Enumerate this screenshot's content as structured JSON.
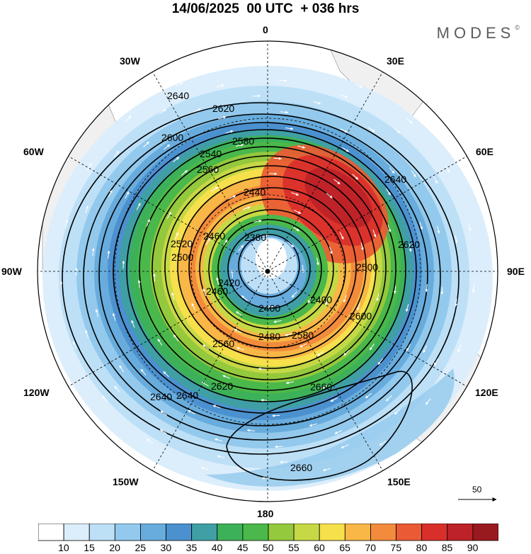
{
  "header": {
    "title": "14/06/2025  00 UTC  + 036 hrs",
    "brand": "MODES",
    "brand_mark": "©"
  },
  "map": {
    "projection": "polar stereographic, south pole centred",
    "longitude_labels": {
      "n": "0",
      "n_e": "30E",
      "e_n": "60E",
      "e": "90E",
      "e_s": "120E",
      "s_e": "150E",
      "s": "180",
      "s_w": "150W",
      "w_s": "120W",
      "w": "90W",
      "w_n": "60W",
      "n_w": "30W"
    },
    "wind_speed_units_shading": "filled",
    "contour_labels": [
      "2640",
      "2620",
      "2600",
      "2580",
      "2560",
      "2540",
      "2440",
      "2380",
      "2500",
      "2520",
      "2460",
      "2420",
      "2400",
      "2480",
      "2660"
    ],
    "vector_reference": "50",
    "colors": {
      "speed_0": "#ffffff",
      "speed_10": "#dceefb",
      "speed_15": "#bde0f7",
      "speed_20": "#93c9ec",
      "speed_25": "#68acdd",
      "speed_30": "#4c91cf",
      "speed_35": "#3f9fa5",
      "speed_40": "#3db159",
      "speed_45": "#4ab84a",
      "speed_50": "#94c83d",
      "speed_55": "#c6d845",
      "speed_60": "#f6e04c",
      "speed_65": "#f8b746",
      "speed_70": "#f28b3b",
      "speed_75": "#ea5a34",
      "speed_80": "#d92f2b",
      "speed_85": "#bd2228",
      "speed_90": "#981a1f",
      "land": "#f0f0f0",
      "contour": "#000000",
      "vector": "#ffffff"
    }
  },
  "colorbar": {
    "ticks": [
      "10",
      "15",
      "20",
      "25",
      "30",
      "35",
      "40",
      "45",
      "50",
      "55",
      "60",
      "65",
      "70",
      "75",
      "80",
      "85",
      "90"
    ],
    "colors": [
      "#ffffff",
      "#dceefb",
      "#bde0f7",
      "#93c9ec",
      "#68acdd",
      "#4c91cf",
      "#3f9fa5",
      "#3db159",
      "#4ab84a",
      "#94c83d",
      "#c6d845",
      "#f6e04c",
      "#f8b746",
      "#f28b3b",
      "#ea5a34",
      "#d92f2b",
      "#bd2228",
      "#981a1f"
    ]
  }
}
